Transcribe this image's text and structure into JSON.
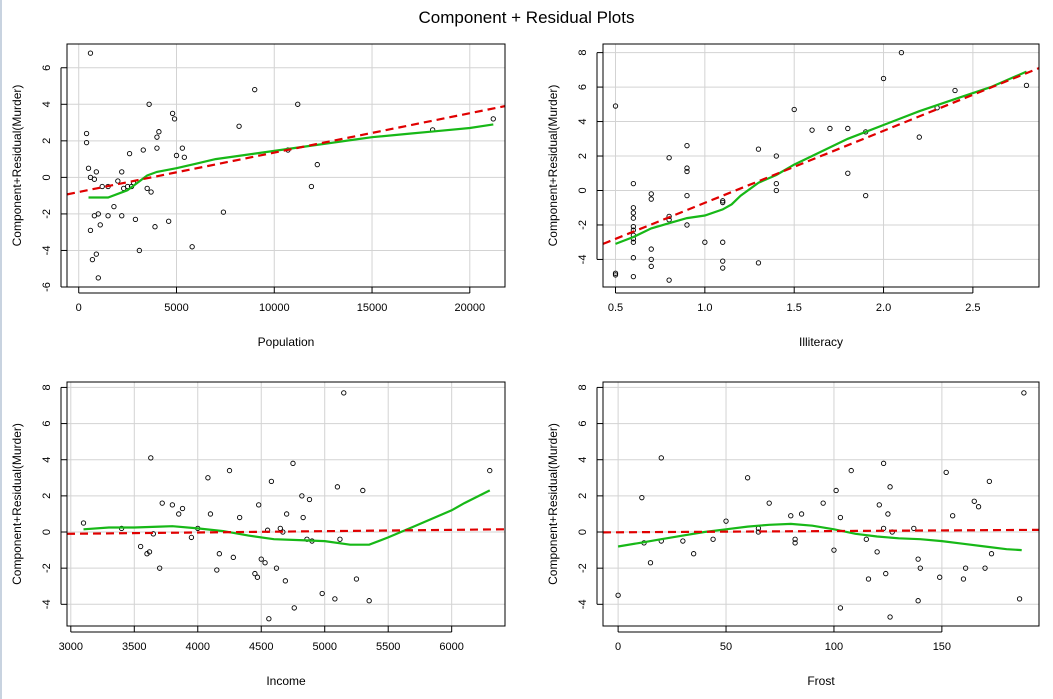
{
  "title": "Component + Residual Plots",
  "colors": {
    "fit_line": "#e00000",
    "smooth_line": "#17b817",
    "grid": "#d3d3d3",
    "points": "#000000"
  },
  "chart_data": [
    {
      "type": "scatter",
      "xlabel": "Population",
      "ylabel": "Component+Residual(Murder)",
      "xlim": [
        -600,
        21800
      ],
      "ylim": [
        -6,
        7.3
      ],
      "xticks": [
        0,
        5000,
        10000,
        15000,
        20000
      ],
      "yticks": [
        -6,
        -4,
        -2,
        0,
        2,
        4,
        6
      ],
      "grid": true,
      "fit_line": [
        [
          -600,
          -0.93
        ],
        [
          21800,
          3.9
        ]
      ],
      "smooth_line": [
        [
          500,
          -1.1
        ],
        [
          1500,
          -1.1
        ],
        [
          2500,
          -0.7
        ],
        [
          3500,
          0.1
        ],
        [
          4000,
          0.3
        ],
        [
          5000,
          0.5
        ],
        [
          6000,
          0.75
        ],
        [
          7000,
          1.0
        ],
        [
          8000,
          1.15
        ],
        [
          9000,
          1.3
        ],
        [
          10000,
          1.45
        ],
        [
          11000,
          1.6
        ],
        [
          12000,
          1.75
        ],
        [
          13000,
          1.9
        ],
        [
          14000,
          2.05
        ],
        [
          15000,
          2.2
        ],
        [
          17000,
          2.4
        ],
        [
          18000,
          2.5
        ],
        [
          20000,
          2.7
        ],
        [
          21200,
          2.9
        ]
      ],
      "points": [
        [
          600,
          6.8
        ],
        [
          400,
          2.4
        ],
        [
          400,
          1.9
        ],
        [
          500,
          0.5
        ],
        [
          600,
          0.0
        ],
        [
          800,
          -0.1
        ],
        [
          900,
          0.3
        ],
        [
          600,
          -2.9
        ],
        [
          700,
          -4.5
        ],
        [
          900,
          -4.2
        ],
        [
          1000,
          -5.5
        ],
        [
          800,
          -2.1
        ],
        [
          1000,
          -2.0
        ],
        [
          1100,
          -2.6
        ],
        [
          1200,
          -0.5
        ],
        [
          1500,
          -2.1
        ],
        [
          1500,
          -0.5
        ],
        [
          1800,
          -1.6
        ],
        [
          2000,
          -0.2
        ],
        [
          2200,
          -2.1
        ],
        [
          2200,
          0.3
        ],
        [
          2300,
          -0.6
        ],
        [
          2500,
          -0.5
        ],
        [
          2600,
          1.3
        ],
        [
          2700,
          -0.5
        ],
        [
          2800,
          -0.3
        ],
        [
          2900,
          -2.3
        ],
        [
          3100,
          -4.0
        ],
        [
          3300,
          1.5
        ],
        [
          3500,
          -0.6
        ],
        [
          3600,
          4.0
        ],
        [
          3700,
          -0.8
        ],
        [
          3900,
          -2.7
        ],
        [
          4000,
          1.6
        ],
        [
          4000,
          2.2
        ],
        [
          4100,
          2.5
        ],
        [
          4600,
          -2.4
        ],
        [
          4800,
          3.5
        ],
        [
          4900,
          3.2
        ],
        [
          5000,
          1.2
        ],
        [
          5300,
          1.6
        ],
        [
          5400,
          1.1
        ],
        [
          5800,
          -3.8
        ],
        [
          7400,
          -1.9
        ],
        [
          8200,
          2.8
        ],
        [
          9000,
          4.8
        ],
        [
          10700,
          1.5
        ],
        [
          11200,
          4.0
        ],
        [
          11900,
          -0.5
        ],
        [
          12200,
          0.7
        ],
        [
          18100,
          2.6
        ],
        [
          21200,
          3.2
        ]
      ]
    },
    {
      "type": "scatter",
      "xlabel": "Illiteracy",
      "ylabel": "Component+Residual(Murder)",
      "xlim": [
        0.43,
        2.87
      ],
      "ylim": [
        -5.6,
        8.5
      ],
      "xticks": [
        0.5,
        1.0,
        1.5,
        2.0,
        2.5
      ],
      "xticklabels": [
        "0.5",
        "1.0",
        "1.5",
        "2.0",
        "2.5"
      ],
      "yticks": [
        -4,
        -2,
        0,
        2,
        4,
        6,
        8
      ],
      "grid": true,
      "fit_line": [
        [
          0.43,
          -3.1
        ],
        [
          2.87,
          7.1
        ]
      ],
      "smooth_line": [
        [
          0.5,
          -3.1
        ],
        [
          0.6,
          -2.7
        ],
        [
          0.7,
          -2.2
        ],
        [
          0.8,
          -1.9
        ],
        [
          0.9,
          -1.6
        ],
        [
          1.0,
          -1.45
        ],
        [
          1.1,
          -1.1
        ],
        [
          1.15,
          -0.8
        ],
        [
          1.2,
          -0.3
        ],
        [
          1.3,
          0.45
        ],
        [
          1.4,
          0.9
        ],
        [
          1.5,
          1.5
        ],
        [
          1.6,
          2.0
        ],
        [
          1.8,
          3.0
        ],
        [
          2.0,
          3.8
        ],
        [
          2.2,
          4.6
        ],
        [
          2.4,
          5.3
        ],
        [
          2.6,
          6.0
        ],
        [
          2.8,
          6.9
        ]
      ],
      "points": [
        [
          0.5,
          4.9
        ],
        [
          0.5,
          -4.9
        ],
        [
          0.5,
          -4.8
        ],
        [
          0.6,
          0.4
        ],
        [
          0.6,
          -1.0
        ],
        [
          0.6,
          -1.3
        ],
        [
          0.6,
          -1.6
        ],
        [
          0.6,
          -2.1
        ],
        [
          0.6,
          -2.3
        ],
        [
          0.6,
          -2.6
        ],
        [
          0.6,
          -2.8
        ],
        [
          0.6,
          -3.0
        ],
        [
          0.6,
          -3.9
        ],
        [
          0.6,
          -5.0
        ],
        [
          0.7,
          -0.2
        ],
        [
          0.7,
          -0.5
        ],
        [
          0.7,
          -3.4
        ],
        [
          0.7,
          -4.0
        ],
        [
          0.7,
          -4.4
        ],
        [
          0.8,
          1.9
        ],
        [
          0.8,
          -1.5
        ],
        [
          0.8,
          -1.7
        ],
        [
          0.8,
          -5.2
        ],
        [
          0.9,
          2.6
        ],
        [
          0.9,
          1.3
        ],
        [
          0.9,
          1.1
        ],
        [
          0.9,
          -0.3
        ],
        [
          0.9,
          -2.0
        ],
        [
          1.0,
          -3.0
        ],
        [
          1.1,
          -0.6
        ],
        [
          1.1,
          -0.7
        ],
        [
          1.1,
          -3.0
        ],
        [
          1.1,
          -4.1
        ],
        [
          1.1,
          -4.5
        ],
        [
          1.3,
          2.4
        ],
        [
          1.3,
          -4.2
        ],
        [
          1.4,
          2.0
        ],
        [
          1.4,
          0.4
        ],
        [
          1.4,
          0.0
        ],
        [
          1.5,
          4.7
        ],
        [
          1.6,
          3.5
        ],
        [
          1.7,
          3.6
        ],
        [
          1.8,
          3.6
        ],
        [
          1.8,
          1.0
        ],
        [
          1.9,
          3.4
        ],
        [
          1.9,
          -0.3
        ],
        [
          2.0,
          6.5
        ],
        [
          2.1,
          8.0
        ],
        [
          2.2,
          3.1
        ],
        [
          2.3,
          4.8
        ],
        [
          2.4,
          5.8
        ],
        [
          2.8,
          6.1
        ]
      ]
    },
    {
      "type": "scatter",
      "xlabel": "Income",
      "ylabel": "Component+Residual(Murder)",
      "xlim": [
        2970,
        6420
      ],
      "ylim": [
        -5.2,
        8.3
      ],
      "xticks": [
        3000,
        3500,
        4000,
        4500,
        5000,
        5500,
        6000
      ],
      "yticks": [
        -4,
        -2,
        0,
        2,
        4,
        6,
        8
      ],
      "grid": true,
      "fit_line": [
        [
          2970,
          -0.1
        ],
        [
          6420,
          0.15
        ]
      ],
      "smooth_line": [
        [
          3100,
          0.15
        ],
        [
          3300,
          0.25
        ],
        [
          3500,
          0.25
        ],
        [
          3700,
          0.3
        ],
        [
          3800,
          0.32
        ],
        [
          4000,
          0.2
        ],
        [
          4200,
          0.05
        ],
        [
          4400,
          -0.2
        ],
        [
          4600,
          -0.4
        ],
        [
          4800,
          -0.45
        ],
        [
          5000,
          -0.5
        ],
        [
          5200,
          -0.7
        ],
        [
          5350,
          -0.7
        ],
        [
          5500,
          -0.3
        ],
        [
          5700,
          0.3
        ],
        [
          6000,
          1.2
        ],
        [
          6100,
          1.6
        ],
        [
          6300,
          2.3
        ]
      ],
      "points": [
        [
          3100,
          0.5
        ],
        [
          3400,
          0.2
        ],
        [
          3550,
          -0.8
        ],
        [
          3600,
          -1.2
        ],
        [
          3620,
          -1.1
        ],
        [
          3630,
          4.1
        ],
        [
          3650,
          -0.1
        ],
        [
          3700,
          -2.0
        ],
        [
          3720,
          1.6
        ],
        [
          3800,
          1.5
        ],
        [
          3850,
          1.0
        ],
        [
          3880,
          1.3
        ],
        [
          3950,
          -0.3
        ],
        [
          4000,
          0.2
        ],
        [
          4080,
          3.0
        ],
        [
          4100,
          1.0
        ],
        [
          4150,
          -2.1
        ],
        [
          4170,
          -1.2
        ],
        [
          4250,
          3.4
        ],
        [
          4280,
          -1.4
        ],
        [
          4330,
          0.8
        ],
        [
          4450,
          -2.3
        ],
        [
          4470,
          -2.5
        ],
        [
          4480,
          1.5
        ],
        [
          4500,
          -1.5
        ],
        [
          4530,
          -1.7
        ],
        [
          4550,
          0.1
        ],
        [
          4560,
          -4.8
        ],
        [
          4580,
          2.8
        ],
        [
          4620,
          -2.0
        ],
        [
          4650,
          0.2
        ],
        [
          4670,
          0.0
        ],
        [
          4690,
          -2.7
        ],
        [
          4700,
          1.0
        ],
        [
          4750,
          3.8
        ],
        [
          4760,
          -4.2
        ],
        [
          4820,
          2.0
        ],
        [
          4830,
          0.8
        ],
        [
          4860,
          -0.4
        ],
        [
          4880,
          1.8
        ],
        [
          4900,
          -0.5
        ],
        [
          4980,
          -3.4
        ],
        [
          5080,
          -3.7
        ],
        [
          5100,
          2.5
        ],
        [
          5120,
          -0.4
        ],
        [
          5150,
          7.7
        ],
        [
          5250,
          -2.6
        ],
        [
          5300,
          2.3
        ],
        [
          5350,
          -3.8
        ],
        [
          6300,
          3.4
        ]
      ]
    },
    {
      "type": "scatter",
      "xlabel": "Frost",
      "ylabel": "Component+Residual(Murder)",
      "xlim": [
        -7,
        195
      ],
      "ylim": [
        -5.2,
        8.3
      ],
      "xticks": [
        0,
        50,
        100,
        150
      ],
      "yticks": [
        -4,
        -2,
        0,
        2,
        4,
        6,
        8
      ],
      "grid": true,
      "fit_line": [
        [
          -7,
          -0.02
        ],
        [
          195,
          0.12
        ]
      ],
      "smooth_line": [
        [
          0,
          -0.8
        ],
        [
          10,
          -0.6
        ],
        [
          20,
          -0.4
        ],
        [
          30,
          -0.2
        ],
        [
          40,
          0.0
        ],
        [
          50,
          0.15
        ],
        [
          60,
          0.3
        ],
        [
          70,
          0.4
        ],
        [
          80,
          0.45
        ],
        [
          90,
          0.35
        ],
        [
          100,
          0.15
        ],
        [
          110,
          -0.1
        ],
        [
          120,
          -0.25
        ],
        [
          130,
          -0.35
        ],
        [
          140,
          -0.4
        ],
        [
          150,
          -0.5
        ],
        [
          160,
          -0.65
        ],
        [
          170,
          -0.8
        ],
        [
          180,
          -0.95
        ],
        [
          187,
          -1.0
        ]
      ],
      "points": [
        [
          0,
          -3.5
        ],
        [
          11,
          1.9
        ],
        [
          12,
          -0.6
        ],
        [
          15,
          -1.7
        ],
        [
          20,
          -0.5
        ],
        [
          20,
          4.1
        ],
        [
          30,
          -0.5
        ],
        [
          35,
          -1.2
        ],
        [
          44,
          -0.4
        ],
        [
          50,
          0.6
        ],
        [
          60,
          3.0
        ],
        [
          65,
          0.2
        ],
        [
          65,
          0.0
        ],
        [
          70,
          1.6
        ],
        [
          80,
          0.9
        ],
        [
          82,
          -0.6
        ],
        [
          82,
          -0.4
        ],
        [
          85,
          1.0
        ],
        [
          95,
          1.6
        ],
        [
          100,
          -1.0
        ],
        [
          101,
          2.3
        ],
        [
          103,
          0.8
        ],
        [
          103,
          -4.2
        ],
        [
          108,
          3.4
        ],
        [
          115,
          -0.4
        ],
        [
          116,
          -2.6
        ],
        [
          120,
          -1.1
        ],
        [
          121,
          1.5
        ],
        [
          123,
          3.8
        ],
        [
          123,
          0.2
        ],
        [
          124,
          -2.3
        ],
        [
          125,
          1.0
        ],
        [
          126,
          2.5
        ],
        [
          126,
          -4.7
        ],
        [
          127,
          0.0
        ],
        [
          137,
          0.2
        ],
        [
          139,
          -1.5
        ],
        [
          139,
          -3.8
        ],
        [
          140,
          -2.0
        ],
        [
          149,
          -2.5
        ],
        [
          152,
          3.3
        ],
        [
          155,
          0.9
        ],
        [
          160,
          -2.6
        ],
        [
          161,
          -2.0
        ],
        [
          165,
          1.7
        ],
        [
          167,
          1.4
        ],
        [
          170,
          -2.0
        ],
        [
          172,
          2.8
        ],
        [
          173,
          -1.2
        ],
        [
          186,
          -3.7
        ],
        [
          188,
          7.7
        ]
      ]
    }
  ]
}
